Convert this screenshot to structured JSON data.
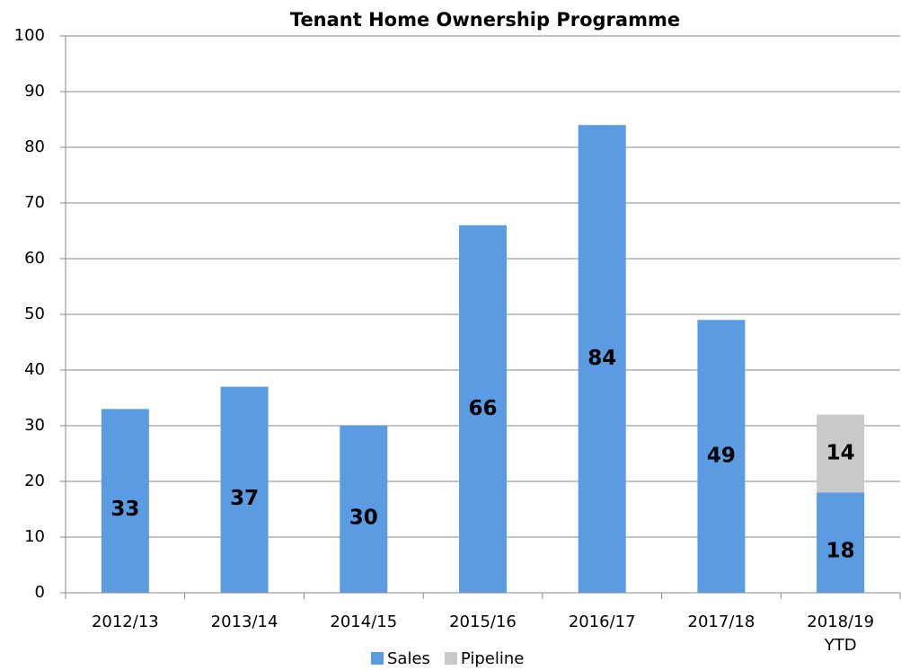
{
  "chart_data": {
    "type": "stacked-bar",
    "title": "Tenant Home Ownership Programme",
    "categories": [
      "2012/13",
      "2013/14",
      "2014/15",
      "2015/16",
      "2016/17",
      "2017/18",
      "2018/19 YTD"
    ],
    "series": [
      {
        "name": "Sales",
        "color": "#5b9be1",
        "values": [
          33,
          37,
          30,
          66,
          84,
          49,
          18
        ]
      },
      {
        "name": "Pipeline",
        "color": "#c9c9c9",
        "values": [
          null,
          null,
          null,
          null,
          null,
          null,
          14
        ]
      }
    ],
    "ylim": [
      0,
      100
    ],
    "yticks": [
      0,
      10,
      20,
      30,
      40,
      50,
      60,
      70,
      80,
      90,
      100
    ],
    "grid": true,
    "legend": "bottom"
  }
}
